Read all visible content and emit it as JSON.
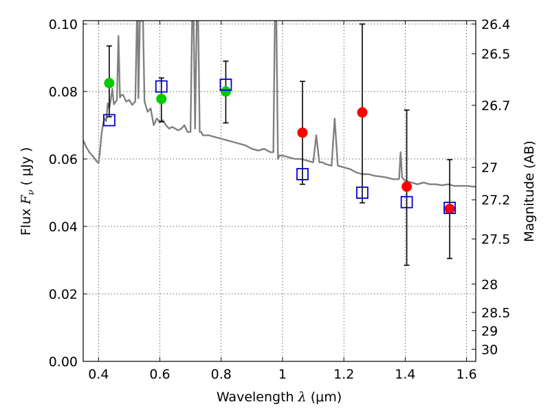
{
  "chart_data": {
    "type": "scatter",
    "title": "",
    "xlabel": "Wavelength",
    "xlabel_symbol": "λ",
    "xlabel_unit": "(μm)",
    "ylabel": "Flux",
    "ylabel_symbol": "F",
    "ylabel_subscript": "ν",
    "ylabel_unit": "( μJy )",
    "y2label": "Magnitude (AB)",
    "xlim": [
      0.35,
      1.63
    ],
    "ylim": [
      0.0,
      0.101
    ],
    "grid": true,
    "x_ticks": [
      0.4,
      0.6,
      0.8,
      1.0,
      1.2,
      1.4,
      1.6
    ],
    "x_tick_labels": [
      "0.4",
      "0.6",
      "0.8",
      "1",
      "1.2",
      "1.4",
      "1.6"
    ],
    "y_ticks": [
      0.0,
      0.02,
      0.04,
      0.06,
      0.08,
      0.1
    ],
    "y_tick_labels": [
      "0.00",
      "0.02",
      "0.04",
      "0.06",
      "0.08",
      "0.10"
    ],
    "y2_ticks": [
      {
        "label": "26.4",
        "flux": 0.1
      },
      {
        "label": "26.5",
        "flux": 0.0912
      },
      {
        "label": "26.7",
        "flux": 0.0759
      },
      {
        "label": "27",
        "flux": 0.0575
      },
      {
        "label": "27.2",
        "flux": 0.0479
      },
      {
        "label": "27.5",
        "flux": 0.0363
      },
      {
        "label": "28",
        "flux": 0.0229
      },
      {
        "label": "28.5",
        "flux": 0.0145
      },
      {
        "label": "29",
        "flux": 0.0091
      },
      {
        "label": "30",
        "flux": 0.0036
      }
    ],
    "series": [
      {
        "kind": "line",
        "color": "#808080",
        "x": [
          0.35,
          0.36,
          0.37,
          0.38,
          0.39,
          0.395,
          0.4,
          0.405,
          0.41,
          0.415,
          0.42,
          0.425,
          0.43,
          0.435,
          0.44,
          0.445,
          0.45,
          0.46,
          0.465,
          0.47,
          0.475,
          0.48,
          0.49,
          0.5,
          0.51,
          0.52,
          0.525,
          0.528,
          0.53,
          0.535,
          0.54,
          0.545,
          0.55,
          0.56,
          0.57,
          0.58,
          0.59,
          0.6,
          0.61,
          0.62,
          0.63,
          0.64,
          0.65,
          0.66,
          0.67,
          0.68,
          0.69,
          0.7,
          0.705,
          0.71,
          0.715,
          0.72,
          0.725,
          0.73,
          0.735,
          0.74,
          0.76,
          0.78,
          0.8,
          0.82,
          0.84,
          0.86,
          0.88,
          0.9,
          0.92,
          0.94,
          0.96,
          0.97,
          0.975,
          0.98,
          0.985,
          0.99,
          1.0,
          1.02,
          1.04,
          1.06,
          1.08,
          1.1,
          1.11,
          1.12,
          1.13,
          1.14,
          1.16,
          1.17,
          1.18,
          1.2,
          1.22,
          1.24,
          1.26,
          1.28,
          1.3,
          1.32,
          1.34,
          1.36,
          1.38,
          1.385,
          1.39,
          1.4,
          1.42,
          1.44,
          1.46,
          1.48,
          1.5,
          1.52,
          1.54,
          1.56,
          1.58,
          1.6,
          1.62,
          1.63
        ],
        "y": [
          0.0655,
          0.0635,
          0.062,
          0.061,
          0.0598,
          0.0592,
          0.0588,
          0.0625,
          0.0675,
          0.0705,
          0.072,
          0.0712,
          0.0765,
          0.075,
          0.0775,
          0.0808,
          0.0762,
          0.0775,
          0.0965,
          0.0782,
          0.079,
          0.079,
          0.077,
          0.0775,
          0.076,
          0.077,
          0.101,
          0.101,
          0.078,
          0.101,
          0.101,
          0.101,
          0.077,
          0.074,
          0.075,
          0.07,
          0.072,
          0.071,
          0.0715,
          0.07,
          0.069,
          0.0695,
          0.069,
          0.0685,
          0.069,
          0.07,
          0.068,
          0.068,
          0.101,
          0.101,
          0.069,
          0.101,
          0.101,
          0.068,
          0.068,
          0.067,
          0.067,
          0.0665,
          0.066,
          0.0655,
          0.065,
          0.0645,
          0.064,
          0.063,
          0.0625,
          0.063,
          0.062,
          0.062,
          0.101,
          0.101,
          0.06,
          0.061,
          0.061,
          0.0605,
          0.06,
          0.06,
          0.0595,
          0.059,
          0.067,
          0.059,
          0.059,
          0.0585,
          0.058,
          0.072,
          0.058,
          0.0575,
          0.057,
          0.056,
          0.0555,
          0.0555,
          0.055,
          0.0548,
          0.0545,
          0.054,
          0.054,
          0.062,
          0.0545,
          0.0535,
          0.053,
          0.0525,
          0.053,
          0.0525,
          0.0525,
          0.0522,
          0.0525,
          0.052,
          0.052,
          0.052,
          0.0518,
          0.0518
        ]
      },
      {
        "kind": "points",
        "marker": "circle",
        "color": "#00cc00",
        "x": [
          0.435,
          0.605,
          0.815
        ],
        "y": [
          0.0825,
          0.0778,
          0.08
        ],
        "y_err_low": [
          0.0725,
          0.071,
          0.0707
        ],
        "y_err_high": [
          0.0935,
          0.084,
          0.089
        ]
      },
      {
        "kind": "points",
        "marker": "circle",
        "color": "#ff0000",
        "x": [
          1.065,
          1.26,
          1.405,
          1.545
        ],
        "y": [
          0.0678,
          0.0738,
          0.0518,
          0.0452
        ],
        "y_err_low": [
          0.0525,
          0.047,
          0.0285,
          0.0305
        ],
        "y_err_high": [
          0.083,
          0.1,
          0.0745,
          0.0598
        ]
      },
      {
        "kind": "points",
        "marker": "square-open",
        "color": "#0000cc",
        "x": [
          0.435,
          0.605,
          0.815,
          1.065,
          1.26,
          1.405,
          1.545
        ],
        "y": [
          0.0715,
          0.0815,
          0.082,
          0.0555,
          0.05,
          0.0472,
          0.0455
        ]
      }
    ]
  }
}
